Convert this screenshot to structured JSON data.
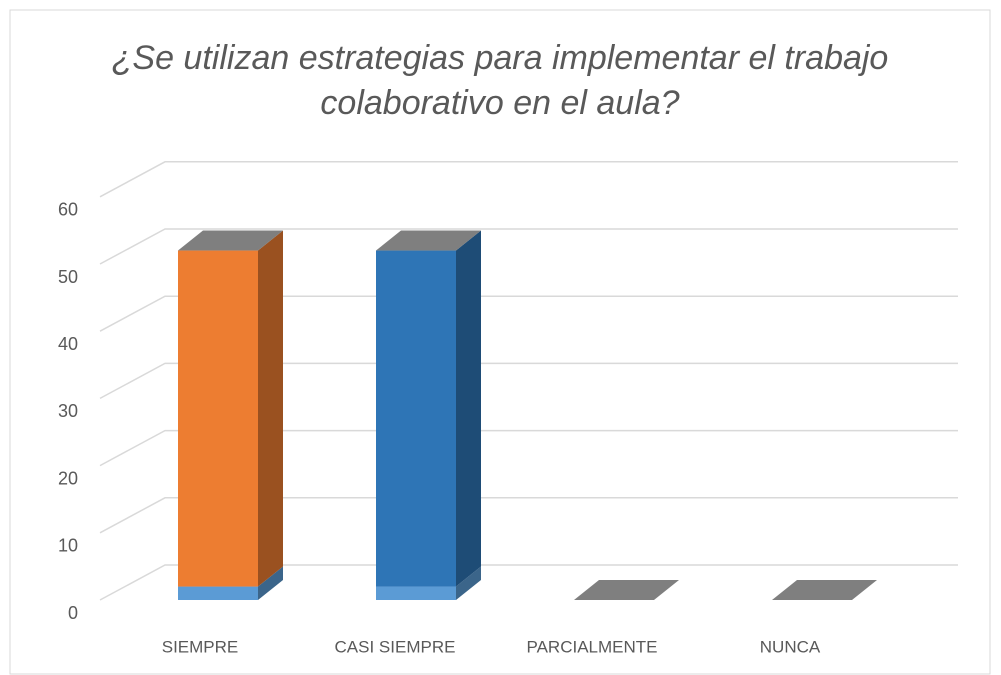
{
  "chart_data": {
    "type": "bar3d-stacked",
    "title": [
      "¿Se utilizan estrategias para implementar el trabajo",
      "colaborativo en el aula?"
    ],
    "categories": [
      "SIEMPRE",
      "CASI SIEMPRE",
      "PARCIALMENTE",
      "NUNCA"
    ],
    "series": [
      {
        "color": "#5b9bd5",
        "values": [
          2,
          2,
          0,
          0
        ]
      },
      {
        "colors": [
          "#ed7d31",
          "#2e75b6",
          "#2e75b6",
          "#2e75b6"
        ],
        "values": [
          50,
          50,
          0,
          0
        ]
      }
    ],
    "top_color": "#7f7f7f",
    "ylim": [
      0,
      60
    ],
    "yticks": [
      0,
      10,
      20,
      30,
      40,
      50,
      60
    ],
    "grid": true
  }
}
